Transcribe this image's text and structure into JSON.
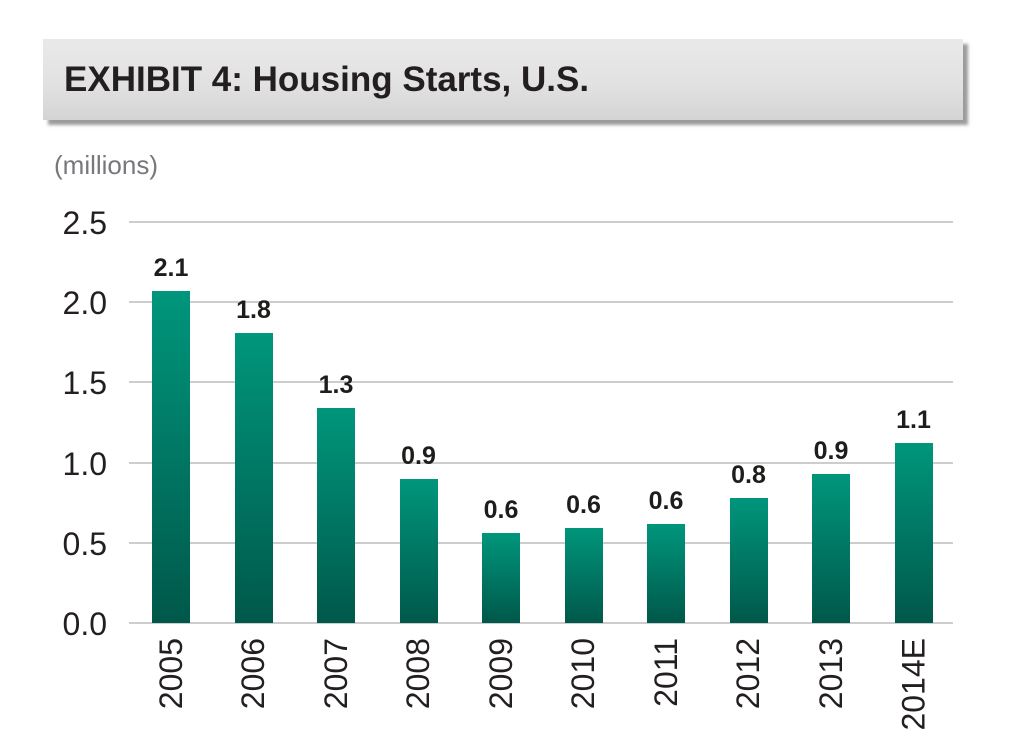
{
  "header": {
    "title": "EXHIBIT 4: Housing Starts, U.S."
  },
  "chart_data": {
    "type": "bar",
    "title": "EXHIBIT 4: Housing Starts, U.S.",
    "units_label": "(millions)",
    "categories": [
      "2005",
      "2006",
      "2007",
      "2008",
      "2009",
      "2010",
      "2011",
      "2012",
      "2013",
      "2014E"
    ],
    "values": [
      2.1,
      1.8,
      1.3,
      0.9,
      0.6,
      0.6,
      0.6,
      0.8,
      0.9,
      1.1
    ],
    "value_labels": [
      "2.1",
      "1.8",
      "1.3",
      "0.9",
      "0.6",
      "0.6",
      "0.6",
      "0.8",
      "0.9",
      "1.1"
    ],
    "values_precise": [
      2.07,
      1.81,
      1.34,
      0.9,
      0.56,
      0.59,
      0.62,
      0.78,
      0.93,
      1.12
    ],
    "y_ticks": [
      "2.5",
      "2.0",
      "1.5",
      "1.0",
      "0.5",
      "0.0"
    ],
    "ylim": [
      0,
      2.5
    ],
    "xlabel": "",
    "ylabel": "(millions)",
    "grid": "horizontal",
    "legend": "none",
    "x_tick_rotation_deg": -90,
    "colors": {
      "bar_gradient_top": "#00967c",
      "bar_gradient_bottom": "#00584a",
      "gridline": "#cdcdcd",
      "banner_top": "#e9e9e9",
      "banner_bottom": "#d4d4d4",
      "title_text": "#231f20",
      "axis_text": "#231f20",
      "value_label_text": "#1d1d1b",
      "units_text": "#77787b"
    }
  }
}
